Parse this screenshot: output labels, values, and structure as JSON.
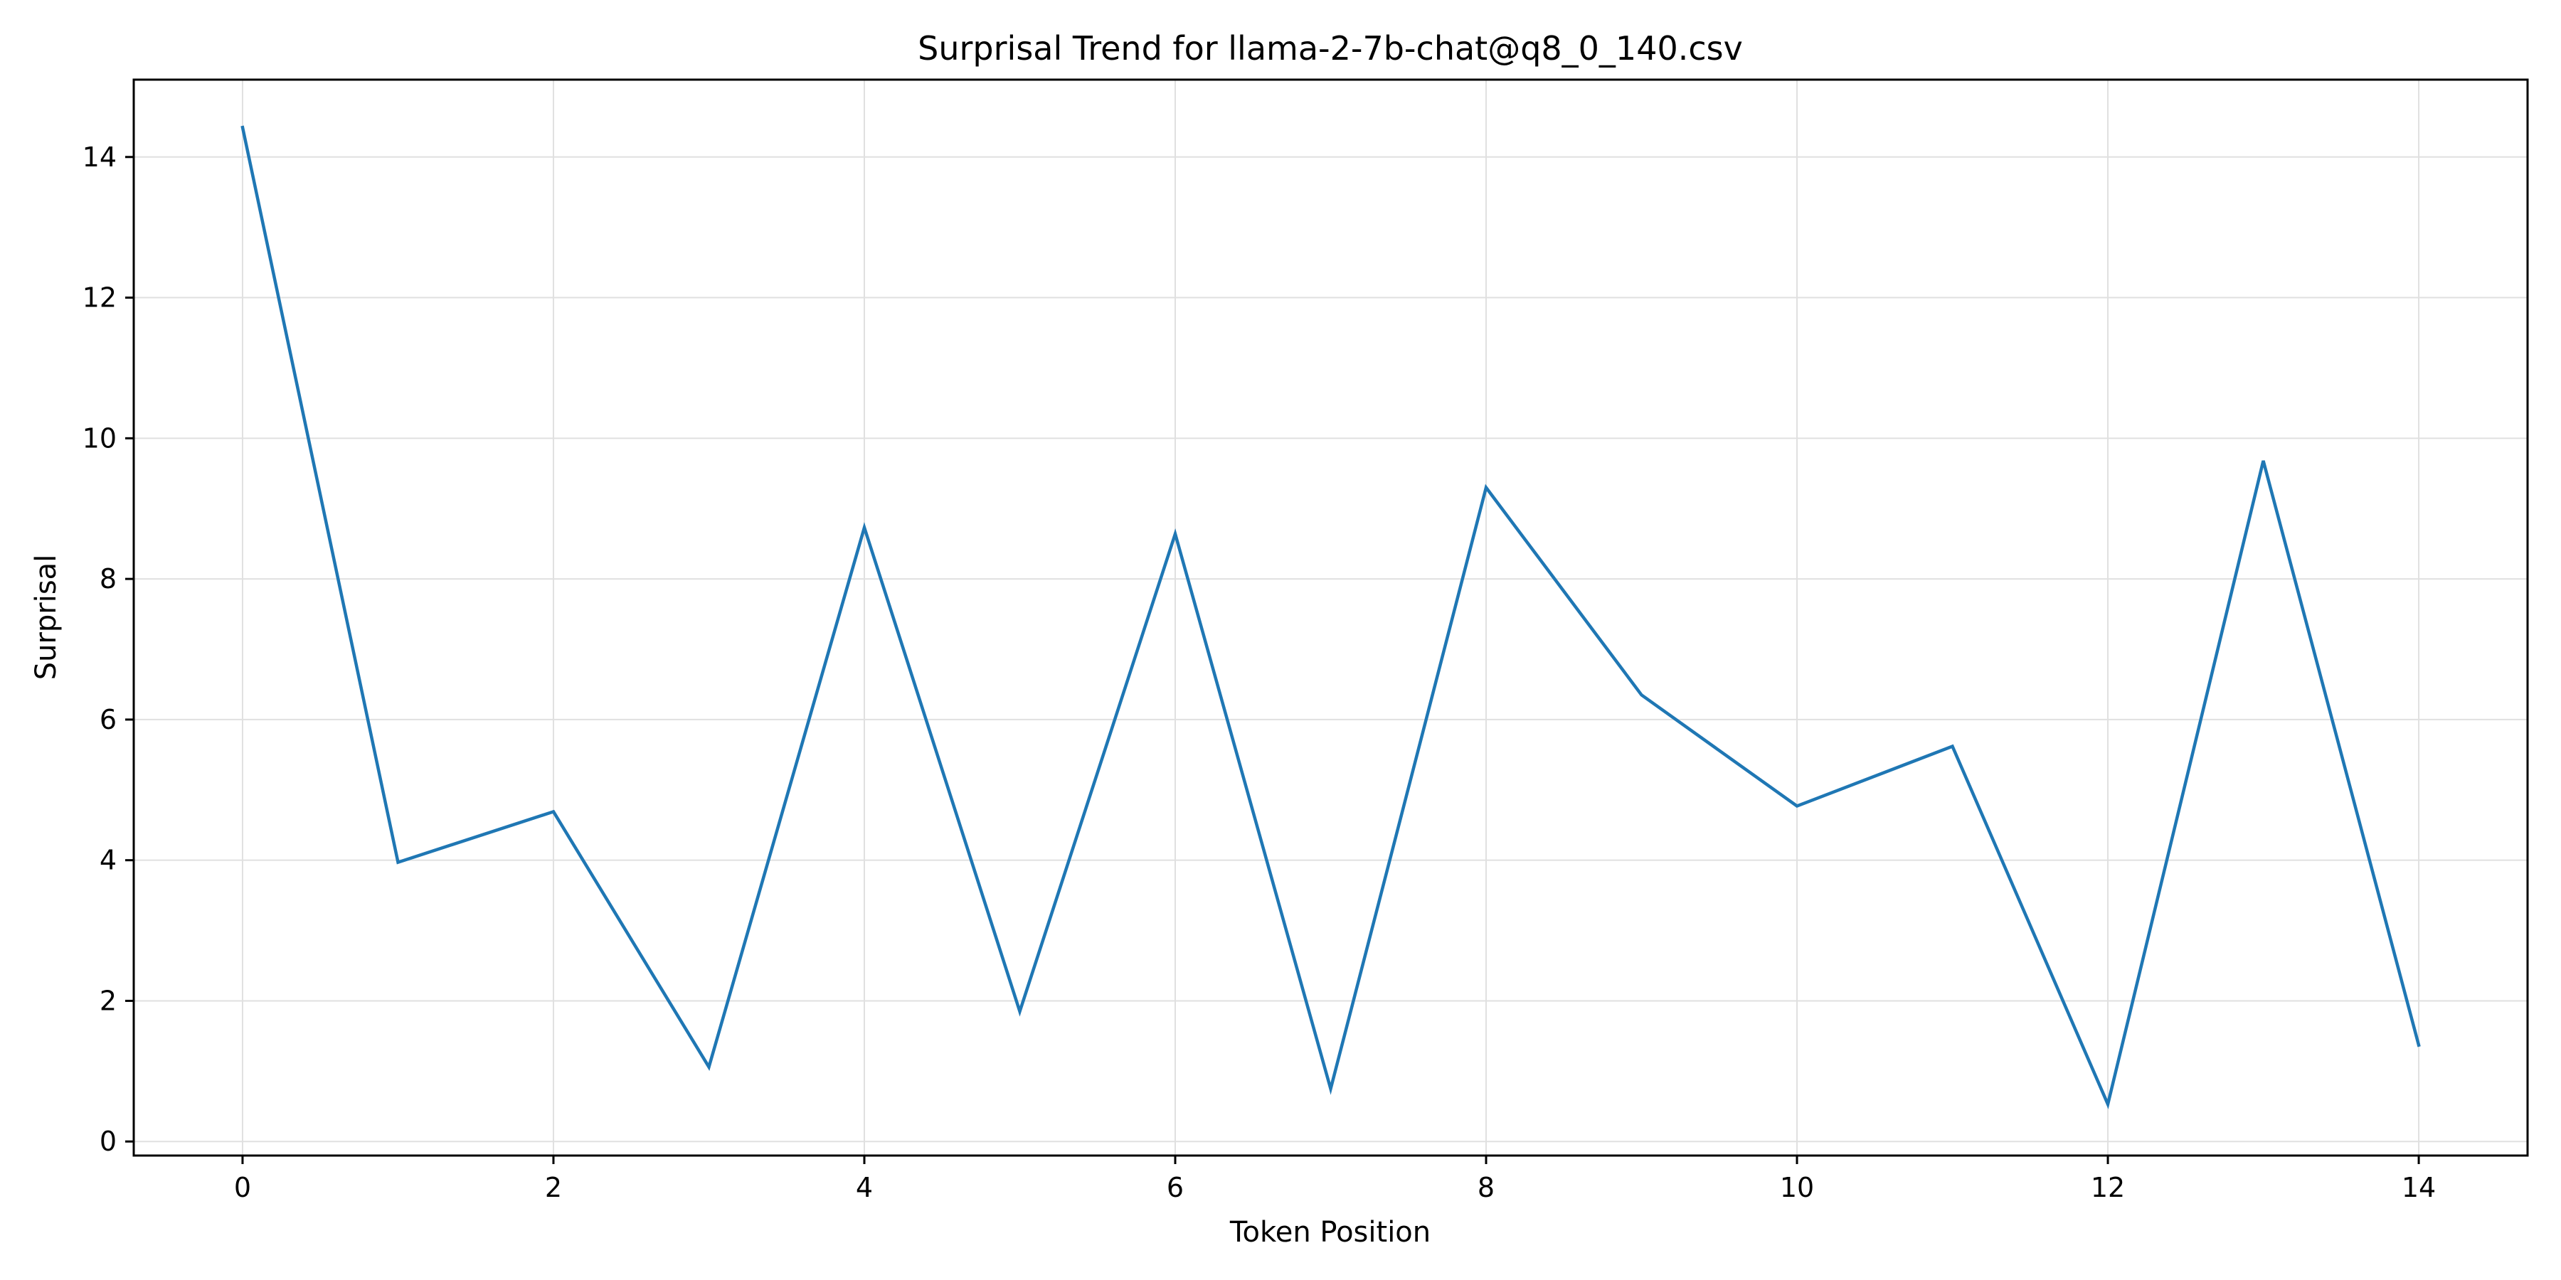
{
  "chart_data": {
    "type": "line",
    "title": "Surprisal Trend for llama-2-7b-chat@q8_0_140.csv",
    "xlabel": "Token Position",
    "ylabel": "Surprisal",
    "xlim": [
      -0.7,
      14.7
    ],
    "ylim": [
      -0.2,
      15.1
    ],
    "xticks": [
      0,
      2,
      4,
      6,
      8,
      10,
      12,
      14
    ],
    "yticks": [
      0,
      2,
      4,
      6,
      8,
      10,
      12,
      14
    ],
    "grid": true,
    "legend": "none",
    "series": [
      {
        "color": "#1f77b4",
        "x": [
          0,
          1,
          2,
          3,
          4,
          5,
          6,
          7,
          8,
          9,
          10,
          11,
          12,
          13,
          14
        ],
        "values": [
          14.42,
          3.97,
          4.69,
          1.06,
          8.73,
          1.85,
          8.64,
          0.75,
          9.3,
          6.35,
          4.77,
          5.62,
          0.53,
          9.68,
          1.37
        ]
      }
    ]
  }
}
